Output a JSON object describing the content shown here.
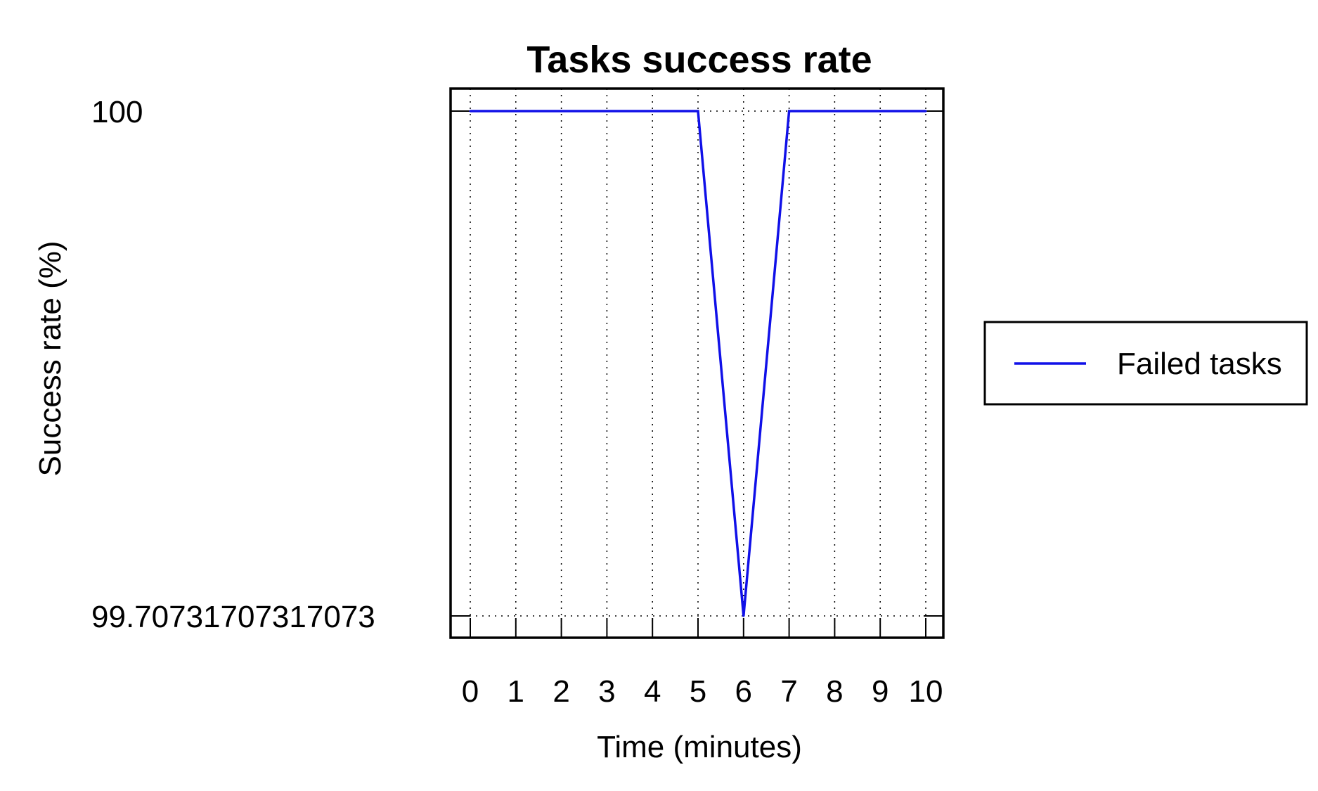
{
  "chart_data": {
    "type": "line",
    "title": "Tasks success rate",
    "xlabel": "Time (minutes)",
    "ylabel": "Success rate (%)",
    "x": [
      0,
      1,
      2,
      3,
      4,
      5,
      6,
      7,
      8,
      9,
      10
    ],
    "x_ticks": [
      "0",
      "1",
      "2",
      "3",
      "4",
      "5",
      "6",
      "7",
      "8",
      "9",
      "10"
    ],
    "y_ticks": [
      "100",
      "99.70731707317073"
    ],
    "y_tick_values": [
      100,
      99.70731707317073
    ],
    "xlim": [
      0,
      10
    ],
    "ylim": [
      99.70731707317073,
      100
    ],
    "grid": true,
    "grid_style": "dotted",
    "legend_position": "right",
    "series": [
      {
        "name": "Failed tasks",
        "color": "#1010e8",
        "values": [
          100,
          100,
          100,
          100,
          100,
          100,
          99.70731707317073,
          100,
          100,
          100,
          100
        ]
      }
    ]
  }
}
